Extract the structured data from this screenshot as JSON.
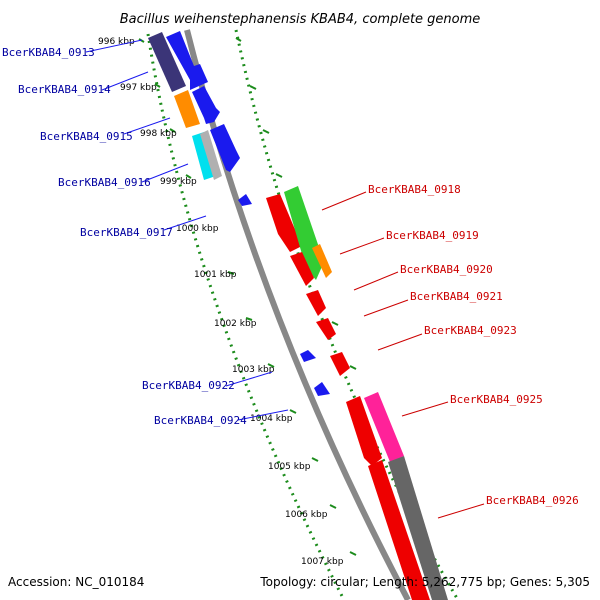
{
  "title": "Bacillus weihenstephanensis KBAB4, complete genome",
  "footer": {
    "accession": "Accession: NC_010184",
    "topology": "Topology: circular; Length: 5,262,775 bp; Genes: 5,305"
  },
  "colors": {
    "backbone": "#888888",
    "dots": "#1c8c1c",
    "forward_label": "#0000a0",
    "reverse_label": "#cc0000"
  },
  "kbp_labels": [
    "996 kbp",
    "997 kbp",
    "998 kbp",
    "999 kbp",
    "1000 kbp",
    "1001 kbp",
    "1002 kbp",
    "1003 kbp",
    "1004 kbp",
    "1005 kbp",
    "1006 kbp",
    "1007 kbp"
  ],
  "forward_genes": [
    {
      "label": "BcerKBAB4_0913",
      "color": "#3b3578"
    },
    {
      "label": "BcerKBAB4_0914",
      "color": "#1a1aee"
    },
    {
      "label": "BcerKBAB4_0915",
      "color": "#ff8c00"
    },
    {
      "label": "BcerKBAB4_0916",
      "color": "#00e0ee"
    },
    {
      "label": "BcerKBAB4_0917",
      "color": "#1a1aee"
    },
    {
      "label": "BcerKBAB4_0922",
      "color": "#1a1aee"
    },
    {
      "label": "BcerKBAB4_0924",
      "color": "#1a1aee"
    }
  ],
  "reverse_genes": [
    {
      "label": "BcerKBAB4_0918",
      "color": "#33cc33"
    },
    {
      "label": "BcerKBAB4_0919",
      "color": "#ff8c00"
    },
    {
      "label": "BcerKBAB4_0920",
      "color": "#ee0000"
    },
    {
      "label": "BcerKBAB4_0921",
      "color": "#ee0000"
    },
    {
      "label": "BcerKBAB4_0923",
      "color": "#ee0000"
    },
    {
      "label": "BcerKBAB4_0925",
      "color": "#ff2299"
    },
    {
      "label": "BcerKBAB4_0926",
      "color": "#666666"
    }
  ]
}
